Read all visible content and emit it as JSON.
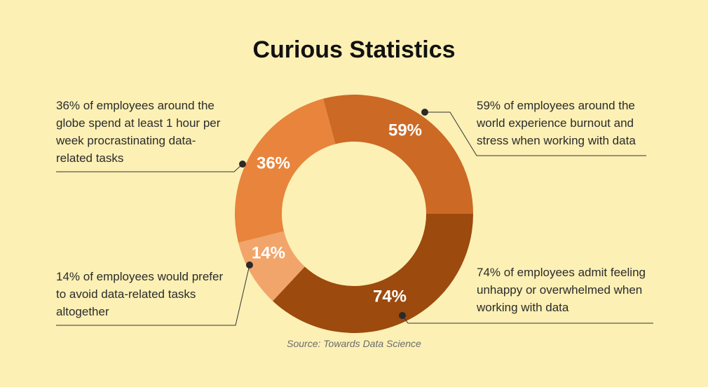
{
  "title": "Curious Statistics",
  "source": "Source: Towards Data Science",
  "colors": {
    "background": "#fcf0b5",
    "slice_59": "#cb6925",
    "slice_74": "#9c4a0d",
    "slice_14": "#f1a56b",
    "slice_36": "#e8843b"
  },
  "chart_data": {
    "type": "pie",
    "title": "Curious Statistics",
    "slices": [
      {
        "label": "59%",
        "value": 59,
        "color": "#cb6925",
        "annotation": "59% of employees around the world experience burnout and stress when working with data"
      },
      {
        "label": "74%",
        "value": 74,
        "color": "#9c4a0d",
        "annotation": "74% of employees admit feeling unhappy or overwhelmed when working with data"
      },
      {
        "label": "14%",
        "value": 14,
        "color": "#f1a56b",
        "annotation": "14% of employees would prefer to avoid data-related tasks altogether"
      },
      {
        "label": "36%",
        "value": 36,
        "color": "#e8843b",
        "annotation": "36% of employees around the globe spend at least 1 hour per week procrastinating data-related tasks"
      }
    ],
    "legend": "none"
  }
}
